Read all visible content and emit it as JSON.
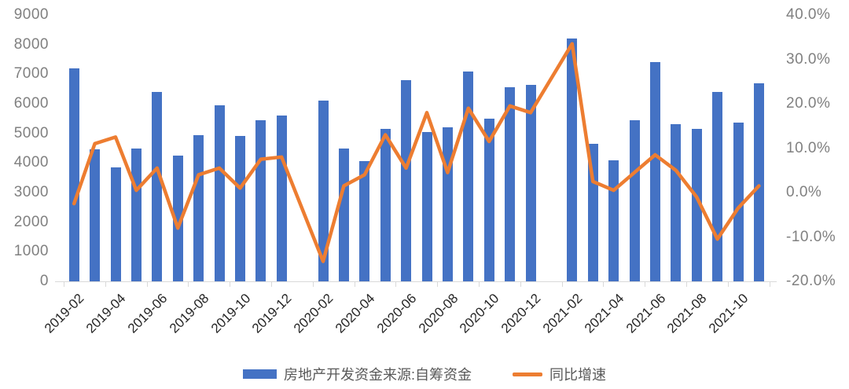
{
  "chart_data": {
    "type": "combo-bar-line",
    "title": "",
    "categories": [
      "2019-02",
      "2019-03",
      "2019-04",
      "2019-05",
      "2019-06",
      "2019-07",
      "2019-08",
      "2019-09",
      "2019-10",
      "2019-11",
      "2019-12",
      "2020-01",
      "2020-02",
      "2020-03",
      "2020-04",
      "2020-05",
      "2020-06",
      "2020-07",
      "2020-08",
      "2020-09",
      "2020-10",
      "2020-11",
      "2020-12",
      "2021-01",
      "2021-02",
      "2021-03",
      "2021-04",
      "2021-05",
      "2021-06",
      "2021-07",
      "2021-08",
      "2021-09",
      "2021-10",
      "2021-11"
    ],
    "series": [
      {
        "name": "房地产开发资金来源:自筹资金",
        "type": "bar",
        "y_axis": "left",
        "color": "#4472C4",
        "values": [
          7200,
          4450,
          3850,
          4500,
          6400,
          4250,
          4950,
          5950,
          4900,
          5450,
          5600,
          null,
          6100,
          4500,
          4050,
          5150,
          6800,
          5050,
          5200,
          7100,
          5500,
          6550,
          6650,
          null,
          8200,
          4650,
          4100,
          5450,
          7400,
          5300,
          5150,
          6400,
          5350,
          6700
        ]
      },
      {
        "name": "同比增速",
        "type": "line",
        "y_axis": "right",
        "color": "#ED7D31",
        "values": [
          -2.5,
          11,
          12.5,
          0.5,
          5.5,
          -8,
          4,
          5.5,
          1,
          7.5,
          8,
          null,
          -15.5,
          1.5,
          4,
          13,
          5.5,
          18,
          4.5,
          19,
          11.5,
          19.5,
          18,
          null,
          33.5,
          2.5,
          0.5,
          4.5,
          8.5,
          5,
          -1,
          -10.5,
          -3.5,
          1.5
        ]
      }
    ],
    "left_axis": {
      "min": 0,
      "max": 9000,
      "step": 1000,
      "tick_labels": [
        "0",
        "1000",
        "2000",
        "3000",
        "4000",
        "5000",
        "6000",
        "7000",
        "8000",
        "9000"
      ]
    },
    "right_axis": {
      "min": -20,
      "max": 40,
      "step": 10,
      "tick_labels": [
        "-20.0%",
        "-10.0%",
        "0.0%",
        "10.0%",
        "20.0%",
        "30.0%",
        "40.0%"
      ]
    },
    "x_tick_labels": [
      "2019-02",
      "2019-04",
      "2019-06",
      "2019-08",
      "2019-10",
      "2019-12",
      "2020-02",
      "2020-04",
      "2020-06",
      "2020-08",
      "2020-10",
      "2020-12",
      "2021-02",
      "2021-04",
      "2021-06",
      "2021-08",
      "2021-10"
    ],
    "legend_position": "bottom",
    "grid": false
  },
  "colors": {
    "bar": "#4472C4",
    "line": "#ED7D31",
    "y_axis_text": "#808080",
    "x_axis_text": "#262626",
    "legend_text": "#595959",
    "axis_line": "#D9D9D9",
    "background": "#FFFFFF"
  }
}
